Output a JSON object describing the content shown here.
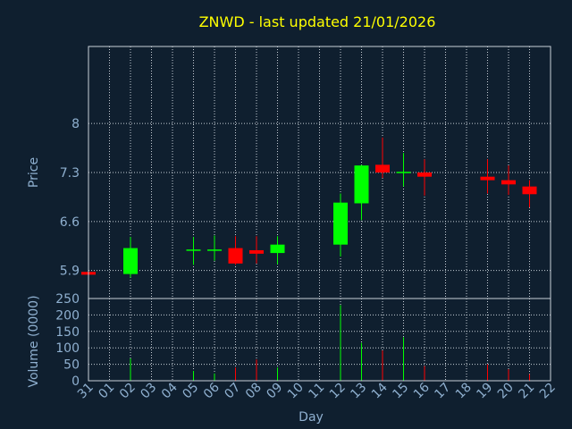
{
  "chart_data": {
    "type": "candlestick",
    "title": "ZNWD - last updated 21/01/2026",
    "xlabel": "Day",
    "price_panel": {
      "ylabel": "Price",
      "yticks": [
        5.9,
        6.6,
        7.3,
        8
      ],
      "ytick_labels": [
        "5.9",
        "6.6",
        "7.3",
        "8"
      ],
      "ylim": [
        5.5,
        9.1
      ]
    },
    "volume_panel": {
      "ylabel": "Volume (0000)",
      "yticks": [
        0,
        50,
        100,
        150,
        200,
        250
      ],
      "ytick_labels": [
        "0",
        "50",
        "100",
        "150",
        "200",
        "250"
      ],
      "ylim": [
        0,
        250
      ]
    },
    "x_tick_labels": [
      "31",
      "01",
      "02",
      "03",
      "04",
      "05",
      "06",
      "07",
      "08",
      "09",
      "10",
      "11",
      "12",
      "13",
      "14",
      "15",
      "16",
      "17",
      "18",
      "19",
      "20",
      "21",
      "22"
    ],
    "grid": true,
    "colors": {
      "up": "#00ff00",
      "down": "#ff0000",
      "background": "#0f1f2f",
      "title": "#ffff00",
      "text": "#8fb0d0"
    },
    "candles": [
      {
        "day": "31",
        "open": 5.88,
        "high": 5.88,
        "low": 5.84,
        "close": 5.84,
        "volume": 0
      },
      {
        "day": "02",
        "open": 5.85,
        "high": 6.38,
        "low": 5.8,
        "close": 6.22,
        "volume": 68
      },
      {
        "day": "05",
        "open": 6.2,
        "high": 6.38,
        "low": 5.98,
        "close": 6.2,
        "volume": 30
      },
      {
        "day": "06",
        "open": 6.2,
        "high": 6.4,
        "low": 6.04,
        "close": 6.2,
        "volume": 22
      },
      {
        "day": "07",
        "open": 6.22,
        "high": 6.39,
        "low": 5.98,
        "close": 6.0,
        "volume": 40
      },
      {
        "day": "08",
        "open": 6.19,
        "high": 6.39,
        "low": 6.0,
        "close": 6.14,
        "volume": 65
      },
      {
        "day": "09",
        "open": 6.15,
        "high": 6.39,
        "low": 5.99,
        "close": 6.27,
        "volume": 40
      },
      {
        "day": "12",
        "open": 6.27,
        "high": 7.0,
        "low": 6.1,
        "close": 6.87,
        "volume": 230
      },
      {
        "day": "13",
        "open": 6.86,
        "high": 7.41,
        "low": 6.62,
        "close": 7.4,
        "volume": 115
      },
      {
        "day": "14",
        "open": 7.41,
        "high": 7.8,
        "low": 7.22,
        "close": 7.3,
        "volume": 92
      },
      {
        "day": "15",
        "open": 7.3,
        "high": 7.58,
        "low": 7.1,
        "close": 7.31,
        "volume": 132
      },
      {
        "day": "16",
        "open": 7.3,
        "high": 7.49,
        "low": 6.97,
        "close": 7.24,
        "volume": 45
      },
      {
        "day": "19",
        "open": 7.24,
        "high": 7.49,
        "low": 7.0,
        "close": 7.19,
        "volume": 50
      },
      {
        "day": "20",
        "open": 7.19,
        "high": 7.4,
        "low": 6.98,
        "close": 7.13,
        "volume": 35
      },
      {
        "day": "21",
        "open": 7.1,
        "high": 7.19,
        "low": 6.8,
        "close": 6.99,
        "volume": 20
      }
    ]
  }
}
